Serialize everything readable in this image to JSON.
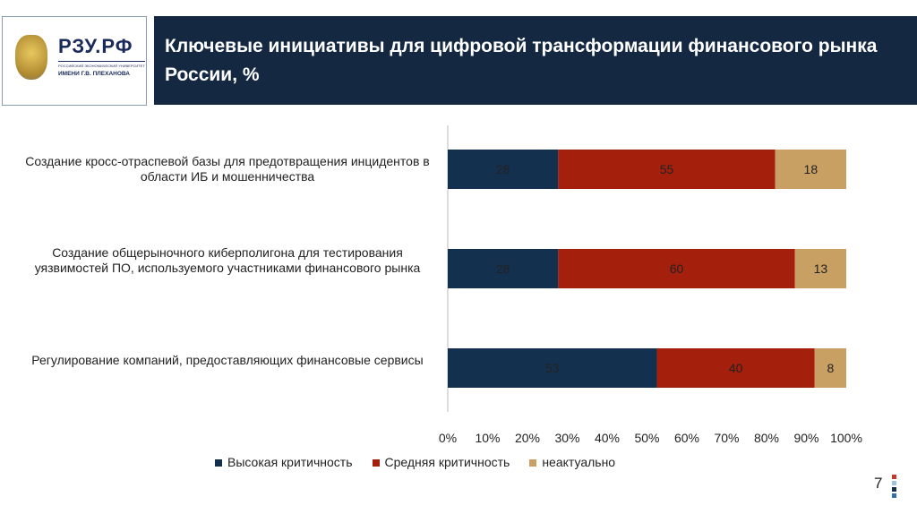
{
  "header": {
    "logo_text": "РЗУ.РФ",
    "logo_sub1": "РОССИЙСКИЙ ЭКОНОМИЧЕСКИЙ УНИВЕРСИТЕТ",
    "logo_sub2": "ИМЕНИ Г.В. ПЛЕХАНОВА",
    "title": "Ключевые инициативы для цифровой трансформации финансового рынка России, %"
  },
  "page_number": "7",
  "chart_data": {
    "type": "bar",
    "orientation": "horizontal",
    "stacked": "percent",
    "title": "Ключевые инициативы для цифровой трансформации финансового рынка России, %",
    "categories": [
      "Создание кросс-отраспевой базы для предотвращения инцидентов в области ИБ и мошенничества",
      "Создание общерыночного киберполигона для тестирования уязвимостей ПО, используемого участниками финансового рынка",
      "Регулирование компаний, предоставляющих финансовые сервисы"
    ],
    "series": [
      {
        "name": "Высокая критичность",
        "color": "#14304f",
        "values": [
          28,
          28,
          53
        ]
      },
      {
        "name": "Средняя критичность",
        "color": "#a5200c",
        "values": [
          55,
          60,
          40
        ]
      },
      {
        "name": "неактуально",
        "color": "#c9a064",
        "values": [
          18,
          13,
          8
        ]
      }
    ],
    "xticks": [
      "0%",
      "10%",
      "20%",
      "30%",
      "40%",
      "50%",
      "60%",
      "70%",
      "80%",
      "90%",
      "100%"
    ],
    "xlim": [
      0,
      100
    ],
    "legend": "bottom",
    "grid": false
  }
}
